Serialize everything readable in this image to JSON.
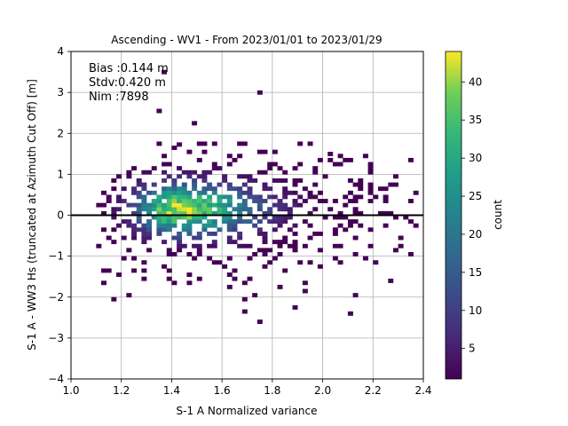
{
  "chart_data": {
    "type": "heatmap",
    "title": "Ascending - WV1 - From 2023/01/01 to 2023/01/29",
    "xlabel": "S-1 A Normalized variance",
    "ylabel": "S-1 A - WW3 Hs (truncated at Azimuth Cut Off) [m]",
    "xlim": [
      1.0,
      2.4
    ],
    "ylim": [
      -4,
      4
    ],
    "xticks": [
      "1.0",
      "1.2",
      "1.4",
      "1.6",
      "1.8",
      "2.0",
      "2.2",
      "2.4"
    ],
    "yticks": [
      "−4",
      "−3",
      "−2",
      "−1",
      "0",
      "1",
      "2",
      "3",
      "4"
    ],
    "grid": true,
    "reference_line_y": 0,
    "annotations": [
      "Bias :0.144 m",
      "Stdv:0.420 m",
      "Nim :7898"
    ],
    "colorbar": {
      "label": "count",
      "range": [
        1,
        44
      ],
      "ticks": [
        "5",
        "10",
        "15",
        "20",
        "25",
        "30",
        "35",
        "40"
      ],
      "colormap": "viridis"
    },
    "density_peak": {
      "x": 1.42,
      "y": 0.15,
      "count": 44
    },
    "bin_width_x": 0.02,
    "bin_height_y": 0.1
  }
}
